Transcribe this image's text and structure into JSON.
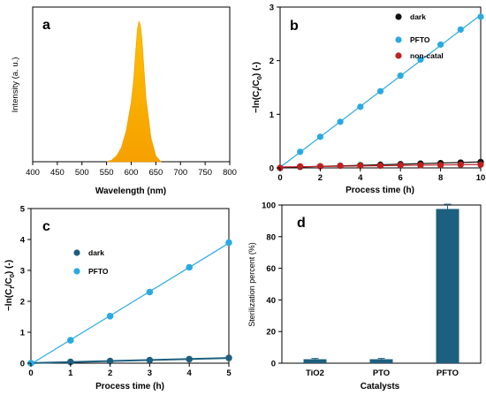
{
  "colors": {
    "dark_b": "#111111",
    "dark_c": "#1d5f7e",
    "pfto": "#2aaae0",
    "noncatal": "#c0201f",
    "bar": "#1d5f7e",
    "spectrum_top": "#ffc000",
    "spectrum_bottom": "#f5a000"
  },
  "chart_data": [
    {
      "panel": "a",
      "type": "area",
      "xlabel": "Wavelength (nm)",
      "ylabel": "Intensity (a. u.)",
      "xlim": [
        400,
        800
      ],
      "xticks": [
        "400",
        "450",
        "500",
        "550",
        "600",
        "650",
        "700",
        "750",
        "800"
      ],
      "yticks": [],
      "series": [
        {
          "x": [
            550,
            560,
            570,
            580,
            590,
            600,
            605,
            610,
            613,
            616,
            619,
            622,
            625,
            630,
            640,
            650,
            660
          ],
          "y": [
            0,
            0.01,
            0.04,
            0.1,
            0.22,
            0.42,
            0.58,
            0.82,
            0.95,
            1.0,
            0.96,
            0.85,
            0.7,
            0.45,
            0.17,
            0.04,
            0
          ]
        }
      ]
    },
    {
      "panel": "b",
      "type": "scatter",
      "xlabel": "Process time (h)",
      "ylabel": "−ln(C",
      "ylabel_sub1": "t",
      "ylabel_mid": "/C",
      "ylabel_sub2": "0",
      "ylabel_end": ") (-)",
      "xlim": [
        0,
        10
      ],
      "ylim": [
        0,
        3
      ],
      "xticks": [
        "0",
        "2",
        "4",
        "6",
        "8",
        "10"
      ],
      "yticks": [
        "0",
        "1",
        "2",
        "3"
      ],
      "series": [
        {
          "name": "dark",
          "x": [
            0,
            1,
            2,
            3,
            4,
            5,
            6,
            7,
            8,
            9,
            10
          ],
          "y": [
            0,
            0.02,
            0.03,
            0.04,
            0.05,
            0.06,
            0.07,
            0.08,
            0.09,
            0.1,
            0.11
          ]
        },
        {
          "name": "PFTO",
          "x": [
            0,
            1,
            2,
            3,
            4,
            5,
            6,
            7,
            8,
            9,
            10
          ],
          "y": [
            0,
            0.3,
            0.58,
            0.86,
            1.14,
            1.43,
            1.72,
            2.02,
            2.3,
            2.58,
            2.82
          ]
        },
        {
          "name": "non-catal",
          "x": [
            0,
            1,
            2,
            3,
            4,
            5,
            6,
            7,
            8,
            9,
            10
          ],
          "y": [
            0,
            0.03,
            0.03,
            0.04,
            0.04,
            0.04,
            0.05,
            0.05,
            0.05,
            0.06,
            0.06
          ]
        }
      ]
    },
    {
      "panel": "c",
      "type": "scatter",
      "xlabel": "Process time (h)",
      "ylabel": "−ln(C",
      "ylabel_sub1": "t",
      "ylabel_mid": "/C",
      "ylabel_sub2": "0",
      "ylabel_end": ") (-)",
      "xlim": [
        0,
        5
      ],
      "ylim": [
        0,
        5
      ],
      "xticks": [
        "0",
        "1",
        "2",
        "3",
        "4",
        "5"
      ],
      "yticks": [
        "0",
        "1",
        "2",
        "3",
        "4",
        "5"
      ],
      "series": [
        {
          "name": "dark",
          "x": [
            0,
            1,
            2,
            3,
            4,
            5
          ],
          "y": [
            0,
            0.04,
            0.07,
            0.1,
            0.13,
            0.17
          ]
        },
        {
          "name": "PFTO",
          "x": [
            0,
            1,
            2,
            3,
            4,
            5
          ],
          "y": [
            0,
            0.74,
            1.52,
            2.3,
            3.1,
            3.9
          ]
        }
      ]
    },
    {
      "panel": "d",
      "type": "bar",
      "xlabel": "Catalysts",
      "ylabel": "Sterilization percent (%)",
      "ylim": [
        0,
        100
      ],
      "yticks": [
        "0",
        "20",
        "40",
        "60",
        "80",
        "100"
      ],
      "categories": [
        "TiO2",
        "PTO",
        "PFTO"
      ],
      "values": [
        2.5,
        2.5,
        97.5
      ],
      "errors": [
        0.5,
        0.5,
        3
      ]
    }
  ]
}
